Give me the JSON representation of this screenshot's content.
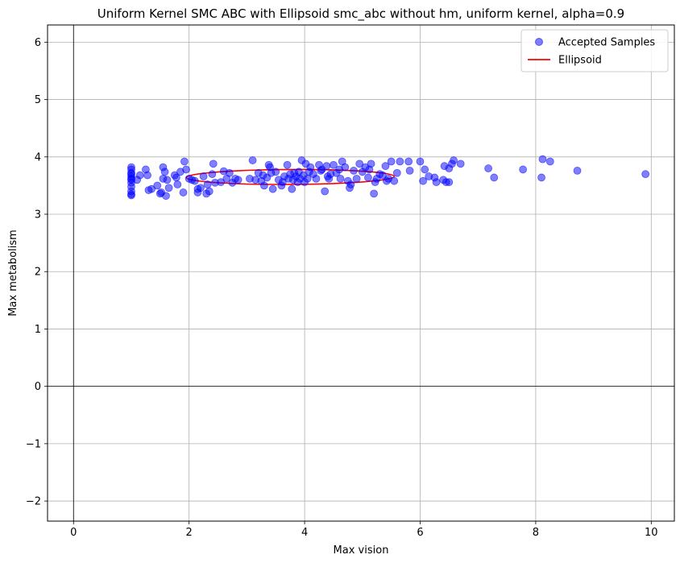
{
  "chart_data": {
    "type": "scatter",
    "title": "Uniform Kernel SMC ABC with Ellipsoid smc_abc without hm, uniform kernel, alpha=0.9",
    "xlabel": "Max vision",
    "ylabel": "Max metabolism",
    "xlim": [
      -0.45,
      10.4
    ],
    "ylim": [
      -2.35,
      6.3
    ],
    "xticks": [
      0,
      2,
      4,
      6,
      8,
      10
    ],
    "yticks": [
      -2,
      -1,
      0,
      1,
      2,
      3,
      4,
      5,
      6
    ],
    "grid": true,
    "legend_position": "top-right",
    "series": [
      {
        "name": "Accepted Samples",
        "kind": "scatter",
        "color": "#0000ff",
        "points": [
          [
            1.0,
            3.33
          ],
          [
            1.0,
            3.4
          ],
          [
            1.0,
            3.48
          ],
          [
            1.0,
            3.55
          ],
          [
            1.0,
            3.6
          ],
          [
            1.0,
            3.66
          ],
          [
            1.0,
            3.72
          ],
          [
            1.0,
            3.78
          ],
          [
            1.0,
            3.82
          ],
          [
            1.0,
            3.35
          ],
          [
            1.0,
            3.62
          ],
          [
            1.0,
            3.7
          ],
          [
            1.1,
            3.6
          ],
          [
            1.15,
            3.68
          ],
          [
            1.25,
            3.78
          ],
          [
            1.28,
            3.68
          ],
          [
            1.3,
            3.42
          ],
          [
            1.35,
            3.44
          ],
          [
            1.45,
            3.5
          ],
          [
            1.5,
            3.36
          ],
          [
            1.52,
            3.38
          ],
          [
            1.55,
            3.62
          ],
          [
            1.55,
            3.82
          ],
          [
            1.58,
            3.74
          ],
          [
            1.6,
            3.32
          ],
          [
            1.62,
            3.6
          ],
          [
            1.65,
            3.46
          ],
          [
            1.75,
            3.68
          ],
          [
            1.78,
            3.64
          ],
          [
            1.8,
            3.52
          ],
          [
            1.85,
            3.74
          ],
          [
            1.9,
            3.38
          ],
          [
            1.92,
            3.92
          ],
          [
            1.95,
            3.78
          ],
          [
            2.0,
            3.62
          ],
          [
            2.05,
            3.6
          ],
          [
            2.1,
            3.58
          ],
          [
            2.15,
            3.44
          ],
          [
            2.15,
            3.38
          ],
          [
            2.2,
            3.46
          ],
          [
            2.25,
            3.66
          ],
          [
            2.3,
            3.36
          ],
          [
            2.32,
            3.52
          ],
          [
            2.35,
            3.4
          ],
          [
            2.4,
            3.7
          ],
          [
            2.42,
            3.88
          ],
          [
            2.45,
            3.55
          ],
          [
            2.55,
            3.56
          ],
          [
            2.6,
            3.75
          ],
          [
            2.65,
            3.62
          ],
          [
            2.7,
            3.72
          ],
          [
            2.75,
            3.55
          ],
          [
            2.8,
            3.62
          ],
          [
            2.85,
            3.6
          ],
          [
            3.05,
            3.62
          ],
          [
            3.1,
            3.94
          ],
          [
            3.15,
            3.6
          ],
          [
            3.2,
            3.72
          ],
          [
            3.25,
            3.58
          ],
          [
            3.28,
            3.68
          ],
          [
            3.3,
            3.5
          ],
          [
            3.35,
            3.64
          ],
          [
            3.38,
            3.86
          ],
          [
            3.4,
            3.82
          ],
          [
            3.42,
            3.72
          ],
          [
            3.45,
            3.44
          ],
          [
            3.5,
            3.74
          ],
          [
            3.55,
            3.6
          ],
          [
            3.6,
            3.5
          ],
          [
            3.62,
            3.56
          ],
          [
            3.65,
            3.66
          ],
          [
            3.7,
            3.86
          ],
          [
            3.72,
            3.62
          ],
          [
            3.75,
            3.7
          ],
          [
            3.78,
            3.44
          ],
          [
            3.8,
            3.6
          ],
          [
            3.82,
            3.72
          ],
          [
            3.85,
            3.66
          ],
          [
            3.88,
            3.56
          ],
          [
            3.9,
            3.74
          ],
          [
            3.92,
            3.62
          ],
          [
            3.95,
            3.94
          ],
          [
            3.98,
            3.68
          ],
          [
            4.0,
            3.56
          ],
          [
            4.02,
            3.88
          ],
          [
            4.05,
            3.62
          ],
          [
            4.08,
            3.74
          ],
          [
            4.1,
            3.82
          ],
          [
            4.15,
            3.7
          ],
          [
            4.2,
            3.62
          ],
          [
            4.25,
            3.86
          ],
          [
            4.28,
            3.76
          ],
          [
            4.3,
            3.78
          ],
          [
            4.35,
            3.4
          ],
          [
            4.38,
            3.84
          ],
          [
            4.4,
            3.66
          ],
          [
            4.42,
            3.62
          ],
          [
            4.45,
            3.7
          ],
          [
            4.5,
            3.86
          ],
          [
            4.55,
            3.72
          ],
          [
            4.6,
            3.78
          ],
          [
            4.62,
            3.62
          ],
          [
            4.65,
            3.92
          ],
          [
            4.7,
            3.82
          ],
          [
            4.75,
            3.58
          ],
          [
            4.78,
            3.46
          ],
          [
            4.8,
            3.52
          ],
          [
            4.85,
            3.76
          ],
          [
            4.9,
            3.62
          ],
          [
            4.95,
            3.88
          ],
          [
            5.0,
            3.74
          ],
          [
            5.05,
            3.82
          ],
          [
            5.1,
            3.64
          ],
          [
            5.12,
            3.78
          ],
          [
            5.15,
            3.88
          ],
          [
            5.2,
            3.36
          ],
          [
            5.22,
            3.56
          ],
          [
            5.25,
            3.62
          ],
          [
            5.3,
            3.7
          ],
          [
            5.35,
            3.68
          ],
          [
            5.4,
            3.84
          ],
          [
            5.42,
            3.58
          ],
          [
            5.45,
            3.62
          ],
          [
            5.5,
            3.92
          ],
          [
            5.55,
            3.58
          ],
          [
            5.6,
            3.72
          ],
          [
            5.65,
            3.92
          ],
          [
            5.8,
            3.92
          ],
          [
            5.82,
            3.76
          ],
          [
            6.0,
            3.92
          ],
          [
            6.05,
            3.58
          ],
          [
            6.08,
            3.78
          ],
          [
            6.15,
            3.66
          ],
          [
            6.25,
            3.64
          ],
          [
            6.28,
            3.56
          ],
          [
            6.4,
            3.6
          ],
          [
            6.42,
            3.84
          ],
          [
            6.45,
            3.56
          ],
          [
            6.5,
            3.8
          ],
          [
            6.5,
            3.56
          ],
          [
            6.55,
            3.88
          ],
          [
            6.58,
            3.94
          ],
          [
            6.7,
            3.88
          ],
          [
            7.18,
            3.8
          ],
          [
            7.28,
            3.64
          ],
          [
            7.78,
            3.78
          ],
          [
            8.1,
            3.64
          ],
          [
            8.12,
            3.96
          ],
          [
            8.25,
            3.92
          ],
          [
            8.72,
            3.76
          ],
          [
            9.9,
            3.7
          ]
        ]
      },
      {
        "name": "Ellipsoid",
        "kind": "ellipse",
        "color": "#ff0000",
        "center": [
          3.75,
          3.65
        ],
        "semi_axis_x": 1.8,
        "semi_axis_y": 0.13,
        "rotation_deg": 0.3
      }
    ]
  }
}
